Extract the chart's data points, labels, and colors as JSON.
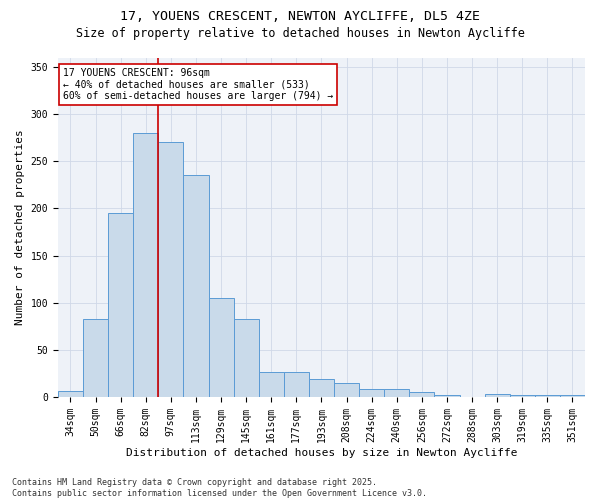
{
  "title_line1": "17, YOUENS CRESCENT, NEWTON AYCLIFFE, DL5 4ZE",
  "title_line2": "Size of property relative to detached houses in Newton Aycliffe",
  "xlabel": "Distribution of detached houses by size in Newton Aycliffe",
  "ylabel": "Number of detached properties",
  "categories": [
    "34sqm",
    "50sqm",
    "66sqm",
    "82sqm",
    "97sqm",
    "113sqm",
    "129sqm",
    "145sqm",
    "161sqm",
    "177sqm",
    "193sqm",
    "208sqm",
    "224sqm",
    "240sqm",
    "256sqm",
    "272sqm",
    "288sqm",
    "303sqm",
    "319sqm",
    "335sqm",
    "351sqm"
  ],
  "values": [
    6,
    83,
    195,
    280,
    270,
    235,
    105,
    83,
    27,
    27,
    19,
    15,
    8,
    8,
    5,
    2,
    0,
    3,
    2,
    2,
    2
  ],
  "bar_color": "#c9daea",
  "bar_edge_color": "#5b9bd5",
  "vline_x": 3.5,
  "vline_color": "#cc0000",
  "annotation_text": "17 YOUENS CRESCENT: 96sqm\n← 40% of detached houses are smaller (533)\n60% of semi-detached houses are larger (794) →",
  "annotation_box_color": "#ffffff",
  "annotation_box_edge": "#cc0000",
  "ylim": [
    0,
    360
  ],
  "yticks": [
    0,
    50,
    100,
    150,
    200,
    250,
    300,
    350
  ],
  "grid_color": "#d0d8e8",
  "background_color": "#eef2f8",
  "footer_text": "Contains HM Land Registry data © Crown copyright and database right 2025.\nContains public sector information licensed under the Open Government Licence v3.0.",
  "title_fontsize": 9.5,
  "subtitle_fontsize": 8.5,
  "tick_fontsize": 7,
  "label_fontsize": 8,
  "footer_fontsize": 6,
  "annotation_fontsize": 7
}
